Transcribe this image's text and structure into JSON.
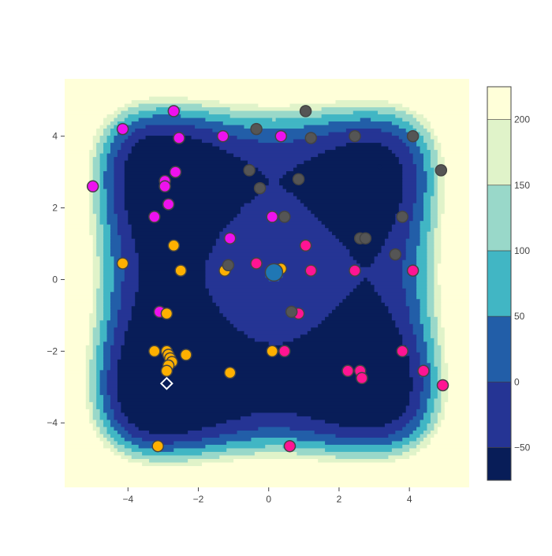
{
  "chart_data": {
    "type": "contour-scatter",
    "title": "",
    "xlabel": "",
    "ylabel": "",
    "xlim": [
      -5.8,
      5.7
    ],
    "ylim": [
      -5.8,
      5.6
    ],
    "x_ticks": [
      -4,
      -2,
      0,
      2,
      4
    ],
    "x_tick_labels": [
      "−4",
      "−2",
      "0",
      "2",
      "4"
    ],
    "y_ticks": [
      -4,
      -2,
      0,
      2,
      4
    ],
    "y_tick_labels": [
      "−4",
      "−2",
      "0",
      "2",
      "4"
    ],
    "grid": false,
    "contour": {
      "levels": [
        -75,
        -50,
        0,
        50,
        100,
        150,
        200,
        225
      ],
      "colors": [
        "#081d58",
        "#253494",
        "#225ea8",
        "#41b6c4",
        "#99d8c9",
        "#e0f3c9",
        "#ffffd9"
      ],
      "colorbar_ticks": [
        -50,
        0,
        50,
        100,
        150,
        200
      ],
      "colorbar_tick_labels": [
        "−50",
        "0",
        "50",
        "100",
        "150",
        "200"
      ],
      "minima": [
        [
          -2.9,
          3.2
        ],
        [
          -2.8,
          -3.3
        ],
        [
          3.6,
          -3.4
        ],
        [
          3.15,
          3.15
        ]
      ]
    },
    "series": [
      {
        "color": "#ff1493",
        "points": [
          [
            1.05,
            0.95
          ],
          [
            1.2,
            0.25
          ],
          [
            2.45,
            0.25
          ],
          [
            4.1,
            0.25
          ],
          [
            -0.35,
            0.45
          ],
          [
            0.85,
            -0.95
          ],
          [
            0.45,
            -2.0
          ],
          [
            3.8,
            -2.0
          ],
          [
            2.25,
            -2.55
          ],
          [
            2.6,
            -2.55
          ],
          [
            2.65,
            -2.75
          ],
          [
            4.4,
            -2.55
          ],
          [
            4.95,
            -2.95
          ],
          [
            0.6,
            -4.65
          ]
        ]
      },
      {
        "color": "#ee11ee",
        "points": [
          [
            -4.15,
            4.2
          ],
          [
            -2.7,
            4.7
          ],
          [
            -2.55,
            3.95
          ],
          [
            -1.3,
            4.0
          ],
          [
            0.35,
            4.0
          ],
          [
            -5.0,
            2.6
          ],
          [
            -2.65,
            3.0
          ],
          [
            -2.95,
            2.75
          ],
          [
            -2.95,
            2.6
          ],
          [
            -2.85,
            2.1
          ],
          [
            -3.25,
            1.75
          ],
          [
            0.1,
            1.75
          ],
          [
            -1.1,
            1.15
          ],
          [
            -3.1,
            -0.9
          ]
        ]
      },
      {
        "color": "#ffb000",
        "points": [
          [
            -2.7,
            0.95
          ],
          [
            -4.15,
            0.45
          ],
          [
            -2.5,
            0.25
          ],
          [
            -1.25,
            0.25
          ],
          [
            0.35,
            0.3
          ],
          [
            -2.9,
            -0.95
          ],
          [
            -3.25,
            -2.0
          ],
          [
            -2.9,
            -2.0
          ],
          [
            -2.85,
            -2.1
          ],
          [
            -2.8,
            -2.2
          ],
          [
            -2.75,
            -2.3
          ],
          [
            -2.85,
            -2.4
          ],
          [
            -2.9,
            -2.55
          ],
          [
            -2.35,
            -2.1
          ],
          [
            -1.1,
            -2.6
          ],
          [
            0.1,
            -2.0
          ],
          [
            -3.15,
            -4.65
          ]
        ]
      },
      {
        "color": "#555555",
        "points": [
          [
            1.05,
            4.7
          ],
          [
            -0.35,
            4.2
          ],
          [
            1.2,
            3.95
          ],
          [
            2.45,
            4.0
          ],
          [
            4.1,
            4.0
          ],
          [
            -0.55,
            3.05
          ],
          [
            0.85,
            2.8
          ],
          [
            -0.25,
            2.55
          ],
          [
            4.9,
            3.05
          ],
          [
            0.45,
            1.75
          ],
          [
            3.8,
            1.75
          ],
          [
            2.6,
            1.15
          ],
          [
            2.75,
            1.15
          ],
          [
            -1.15,
            0.4
          ],
          [
            3.6,
            0.7
          ],
          [
            0.65,
            -0.9
          ]
        ]
      }
    ],
    "special_markers": [
      {
        "name": "current-point",
        "shape": "circle",
        "x": 0.15,
        "y": 0.2,
        "color": "#1f77b4"
      },
      {
        "name": "target-point",
        "shape": "diamond",
        "x": -2.9,
        "y": -2.9,
        "color": "#ffffff"
      },
      {
        "name": "minimum-dot",
        "shape": "dot",
        "x": 3.15,
        "y": 3.15,
        "color": "#081d58"
      }
    ]
  }
}
